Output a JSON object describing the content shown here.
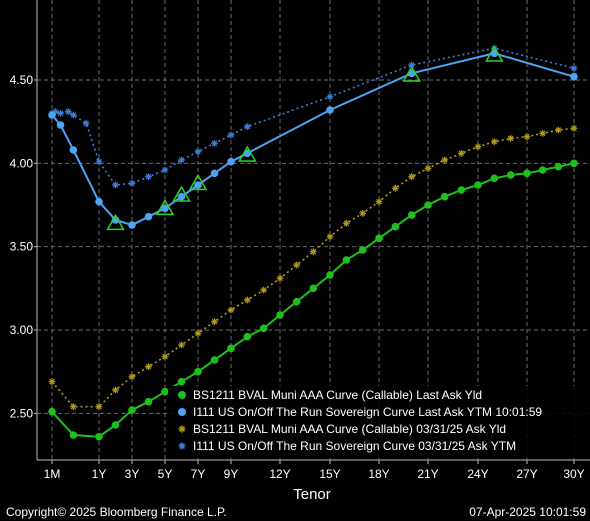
{
  "chart_data": {
    "type": "line",
    "xlabel": "Tenor",
    "ylabel": "",
    "x_ticks": [
      {
        "label": "1M",
        "t": 0.0833
      },
      {
        "label": "1Y",
        "t": 1
      },
      {
        "label": "3Y",
        "t": 3
      },
      {
        "label": "5Y",
        "t": 5
      },
      {
        "label": "7Y",
        "t": 7
      },
      {
        "label": "9Y",
        "t": 9
      },
      {
        "label": "12Y",
        "t": 12
      },
      {
        "label": "15Y",
        "t": 15
      },
      {
        "label": "18Y",
        "t": 18
      },
      {
        "label": "21Y",
        "t": 21
      },
      {
        "label": "24Y",
        "t": 24
      },
      {
        "label": "27Y",
        "t": 27
      },
      {
        "label": "30Y",
        "t": 30
      }
    ],
    "y_ticks": [
      2.5,
      3.0,
      3.5,
      4.0,
      4.5
    ],
    "ylim": [
      2.22,
      4.98
    ],
    "grid": true,
    "legend_position": "bottom-right",
    "series": [
      {
        "name": "BS1211 BVAL Muni AAA Curve (Callable) Last Ask Yld",
        "color": "#1fbf1f",
        "style": "solid",
        "marker": "dot",
        "x": [
          1,
          2,
          3,
          4,
          5,
          6,
          7,
          8,
          9,
          10,
          11,
          12,
          13,
          14,
          15,
          16,
          17,
          18,
          19,
          20,
          21,
          22,
          23,
          24,
          25,
          26,
          27,
          28,
          29,
          30
        ],
        "y": [
          2.36,
          2.43,
          2.52,
          2.57,
          2.63,
          2.69,
          2.75,
          2.82,
          2.89,
          2.96,
          3.01,
          3.09,
          3.17,
          3.25,
          3.33,
          3.42,
          3.48,
          3.55,
          3.62,
          3.69,
          3.75,
          3.8,
          3.84,
          3.87,
          3.91,
          3.93,
          3.94,
          3.96,
          3.98,
          4.0
        ],
        "x_extra": [
          0.0833,
          0.5
        ],
        "y_extra": [
          2.51,
          2.37
        ]
      },
      {
        "name": "I111 US On/Off The Run Sovereign Curve Last Ask YTM 10:01:59",
        "color": "#4ea3f2",
        "style": "solid",
        "marker": "dot",
        "x": [
          0.0833,
          0.25,
          0.5,
          1,
          2,
          3,
          4,
          5,
          6,
          7,
          8,
          9,
          10,
          15,
          20,
          25,
          30
        ],
        "y": [
          4.29,
          4.23,
          4.08,
          3.77,
          3.66,
          3.63,
          3.68,
          3.73,
          3.8,
          3.87,
          3.94,
          4.01,
          4.06,
          4.32,
          4.54,
          4.66,
          4.52
        ],
        "triangles_x": [
          2,
          5,
          6,
          7,
          10,
          20,
          25
        ],
        "triangles_y": [
          3.64,
          3.73,
          3.81,
          3.88,
          4.05,
          4.53,
          4.65
        ]
      },
      {
        "name": "BS1211 BVAL Muni AAA Curve (Callable) 03/31/25 Ask Yld",
        "color": "#b39a1c",
        "style": "dotted",
        "marker": "star",
        "x": [
          0.0833,
          0.5,
          1,
          2,
          3,
          4,
          5,
          6,
          7,
          8,
          9,
          10,
          11,
          12,
          13,
          14,
          15,
          16,
          17,
          18,
          19,
          20,
          21,
          22,
          23,
          24,
          25,
          26,
          27,
          28,
          29,
          30
        ],
        "y": [
          2.69,
          2.54,
          2.54,
          2.64,
          2.72,
          2.78,
          2.84,
          2.91,
          2.98,
          3.05,
          3.12,
          3.18,
          3.24,
          3.31,
          3.39,
          3.47,
          3.56,
          3.64,
          3.7,
          3.77,
          3.85,
          3.92,
          3.97,
          4.02,
          4.06,
          4.1,
          4.13,
          4.15,
          4.16,
          4.18,
          4.2,
          4.21
        ]
      },
      {
        "name": "I111 US On/Off The Run Sovereign Curve 03/31/25 Ask YTM",
        "color": "#3d7fd6",
        "style": "dotted",
        "marker": "star",
        "x": [
          0.0833,
          0.15,
          0.25,
          0.4,
          0.5,
          0.75,
          1,
          2,
          3,
          4,
          5,
          6,
          7,
          8,
          9,
          10,
          15,
          20,
          25,
          30
        ],
        "y": [
          4.3,
          4.31,
          4.3,
          4.31,
          4.29,
          4.24,
          4.01,
          3.87,
          3.88,
          3.92,
          3.96,
          4.02,
          4.07,
          4.12,
          4.17,
          4.22,
          4.4,
          4.59,
          4.69,
          4.57
        ]
      }
    ]
  },
  "footer": {
    "copyright": "Copyright© 2025 Bloomberg Finance L.P.",
    "timestamp": "07-Apr-2025 10:01:59"
  }
}
